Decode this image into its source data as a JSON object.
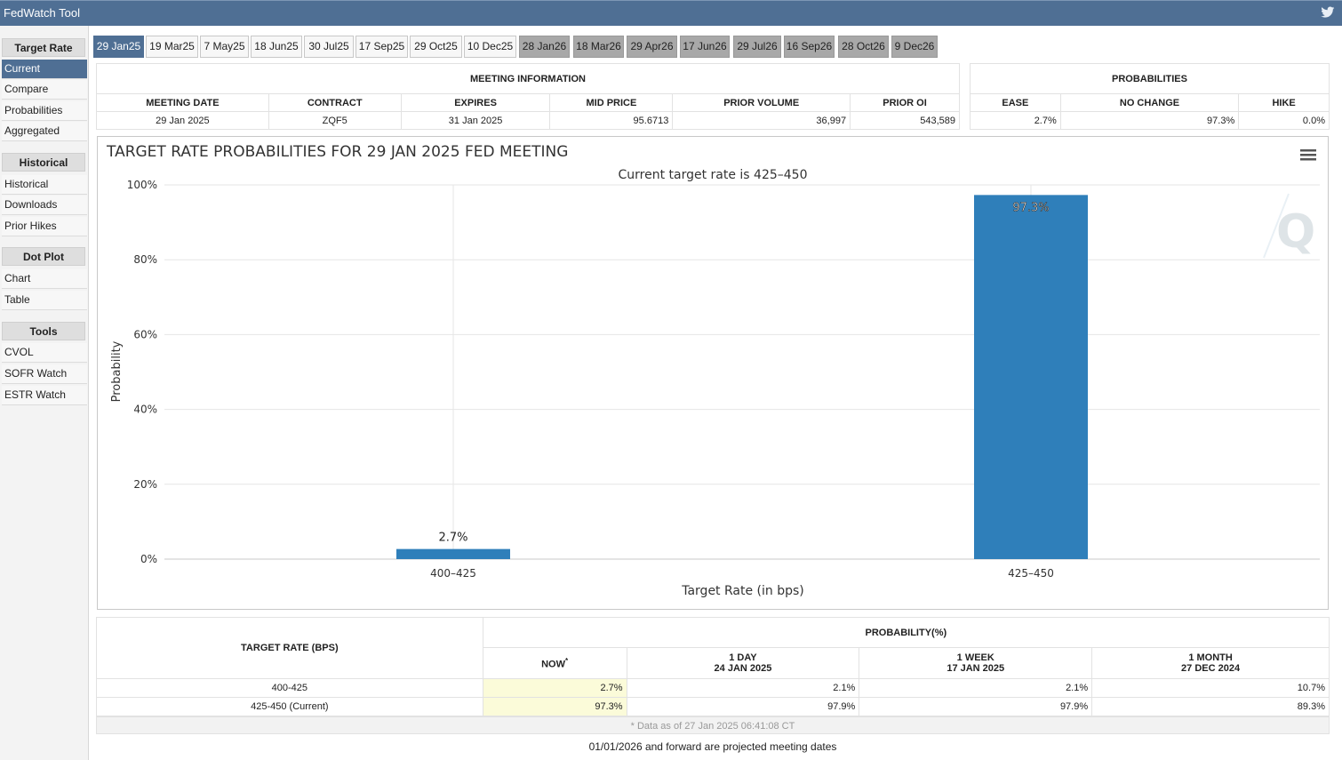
{
  "app": {
    "title": "FedWatch Tool"
  },
  "sidebar": {
    "sections": [
      {
        "heading": "Target Rate",
        "items": [
          "Current",
          "Compare",
          "Probabilities",
          "Aggregated"
        ]
      },
      {
        "heading": "Historical",
        "items": [
          "Historical",
          "Downloads",
          "Prior Hikes"
        ]
      },
      {
        "heading": "Dot Plot",
        "items": [
          "Chart",
          "Table"
        ]
      },
      {
        "heading": "Tools",
        "items": [
          "CVOL",
          "SOFR Watch",
          "ESTR Watch"
        ]
      }
    ],
    "active_item": "Current"
  },
  "tabs": [
    "29 Jan25",
    "19 Mar25",
    "7 May25",
    "18 Jun25",
    "30 Jul25",
    "17 Sep25",
    "29 Oct25",
    "10 Dec25",
    "28 Jan26",
    "18 Mar26",
    "29 Apr26",
    "17 Jun26",
    "29 Jul26",
    "16 Sep26",
    "28 Oct26",
    "9 Dec26"
  ],
  "meeting_info": {
    "section_title": "MEETING INFORMATION",
    "headers": [
      "MEETING DATE",
      "CONTRACT",
      "EXPIRES",
      "MID PRICE",
      "PRIOR VOLUME",
      "PRIOR OI"
    ],
    "values": [
      "29 Jan 2025",
      "ZQF5",
      "31 Jan 2025",
      "95.6713",
      "36,997",
      "543,589"
    ]
  },
  "probabilities": {
    "section_title": "PROBABILITIES",
    "headers": [
      "EASE",
      "NO CHANGE",
      "HIKE"
    ],
    "values": [
      "2.7%",
      "97.3%",
      "0.0%"
    ]
  },
  "chart_data": {
    "type": "bar",
    "title": "TARGET RATE PROBABILITIES FOR 29 JAN 2025 FED MEETING",
    "subtitle": "Current target rate is 425–450",
    "xlabel": "Target Rate (in bps)",
    "ylabel": "Probability",
    "categories": [
      "400–425",
      "425–450"
    ],
    "values": [
      2.7,
      97.3
    ],
    "data_labels": [
      "2.7%",
      "97.3%"
    ],
    "ylim": [
      0,
      100
    ],
    "yticks": [
      "0%",
      "20%",
      "40%",
      "60%",
      "80%",
      "100%"
    ],
    "bar_color": "#2f7fba",
    "grid": true
  },
  "prob_table": {
    "rate_header": "TARGET RATE (BPS)",
    "prob_header": "PROBABILITY(%)",
    "columns": [
      {
        "label": "NOW",
        "sup": "*",
        "date": ""
      },
      {
        "label": "1 DAY",
        "date": "24 JAN 2025"
      },
      {
        "label": "1 WEEK",
        "date": "17 JAN 2025"
      },
      {
        "label": "1 MONTH",
        "date": "27 DEC 2024"
      }
    ],
    "rows": [
      {
        "rate": "400-425",
        "values": [
          "2.7%",
          "2.1%",
          "2.1%",
          "10.7%"
        ]
      },
      {
        "rate": "425-450 (Current)",
        "values": [
          "97.3%",
          "97.9%",
          "97.9%",
          "89.3%"
        ]
      }
    ],
    "note": "* Data as of 27 Jan 2025 06:41:08 CT"
  },
  "footer": "01/01/2026 and forward are projected meeting dates",
  "colors": {
    "header_blue": "#4f6f94",
    "bar_blue": "#2f7fba",
    "projected_tab": "#a8a8a8",
    "highlight": "#fbfbd9"
  }
}
